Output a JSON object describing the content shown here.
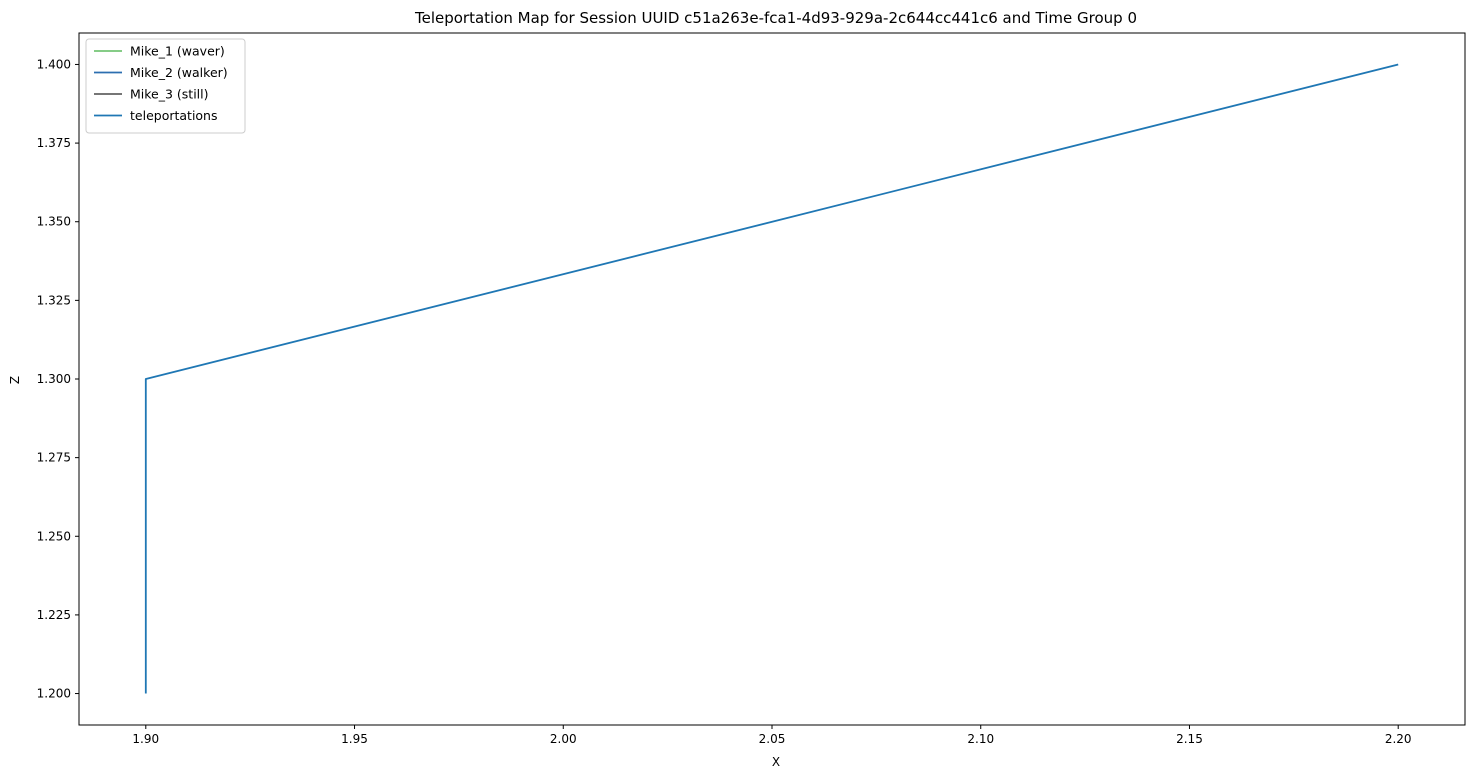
{
  "chart_data": {
    "type": "line",
    "title": "Teleportation Map for Session UUID c51a263e-fca1-4d93-929a-2c644cc441c6 and Time Group 0",
    "xlabel": "X",
    "ylabel": "Z",
    "xlim": [
      1.884,
      2.216
    ],
    "ylim": [
      1.19,
      1.41
    ],
    "xticks": [
      1.9,
      1.95,
      2.0,
      2.05,
      2.1,
      2.15,
      2.2
    ],
    "xtick_labels": [
      "1.90",
      "1.95",
      "2.00",
      "2.05",
      "2.10",
      "2.15",
      "2.20"
    ],
    "yticks": [
      1.2,
      1.225,
      1.25,
      1.275,
      1.3,
      1.325,
      1.35,
      1.375,
      1.4
    ],
    "ytick_labels": [
      "1.200",
      "1.225",
      "1.250",
      "1.275",
      "1.300",
      "1.325",
      "1.350",
      "1.375",
      "1.400"
    ],
    "grid": false,
    "legend_position": "top-left",
    "series": [
      {
        "name": "Mike_1 (waver)",
        "color": "#74c476",
        "x": [],
        "y": []
      },
      {
        "name": "Mike_2 (walker)",
        "color": "#2c6fb0",
        "x": [],
        "y": []
      },
      {
        "name": "Mike_3 (still)",
        "color": "#636363",
        "x": [],
        "y": []
      },
      {
        "name": "teleportations",
        "color": "#1f77b4",
        "x": [
          1.9,
          1.9,
          2.2
        ],
        "y": [
          1.2,
          1.3,
          1.4
        ]
      }
    ]
  }
}
